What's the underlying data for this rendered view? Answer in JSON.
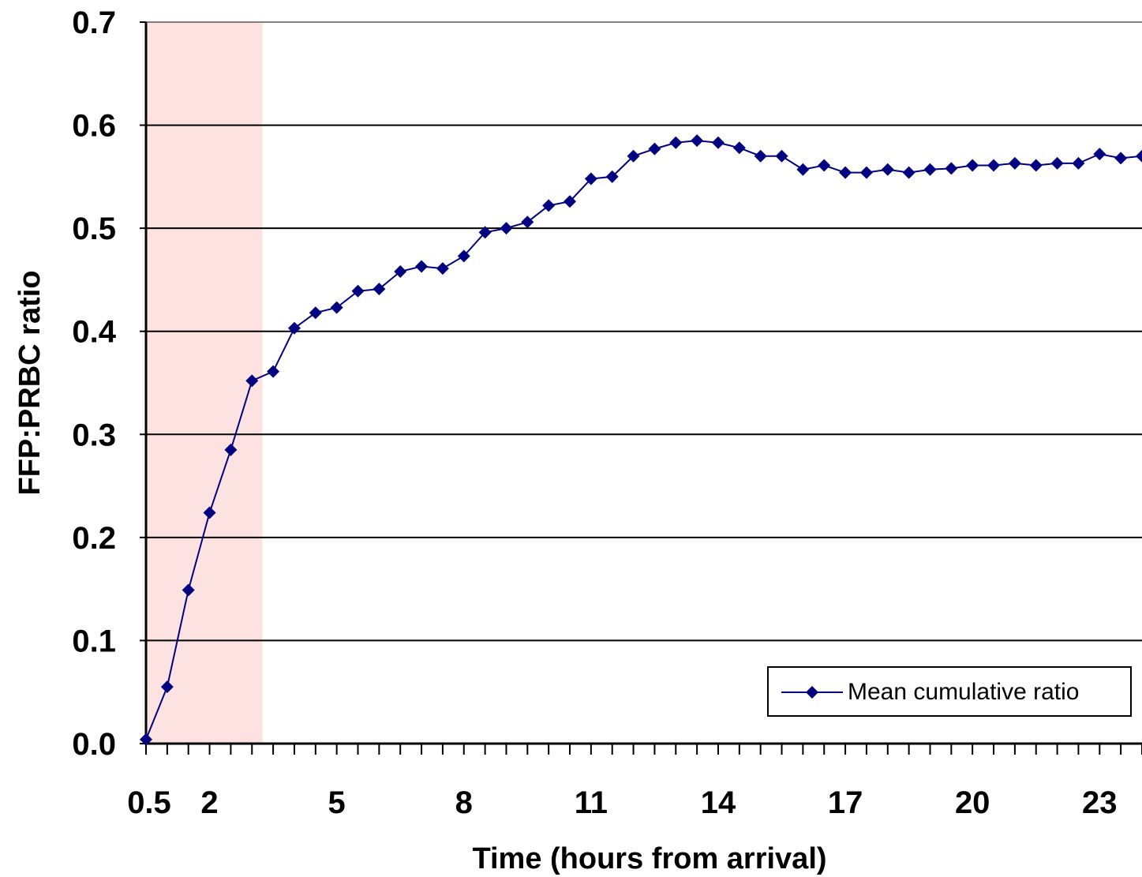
{
  "chart_data": {
    "type": "line",
    "xlabel": "Time (hours from arrival)",
    "ylabel": "FFP:PRBC ratio",
    "xlim": [
      0.5,
      24
    ],
    "ylim": [
      0,
      0.7
    ],
    "yticks": [
      "0.0",
      "0.1",
      "0.2",
      "0.3",
      "0.4",
      "0.5",
      "0.6",
      "0.7"
    ],
    "xticks": [
      "0.5",
      "2",
      "5",
      "8",
      "11",
      "14",
      "17",
      "20",
      "23"
    ],
    "grid": true,
    "legend": "bottom-right",
    "highlight_region": [
      0.5,
      3.25
    ],
    "colors": {
      "line": "#000080",
      "highlight": "#fde2e2"
    },
    "series": [
      {
        "name": "Mean cumulative ratio",
        "x": [
          0.5,
          1,
          1.5,
          2,
          2.5,
          3,
          3.5,
          4,
          4.5,
          5,
          5.5,
          6,
          6.5,
          7,
          7.5,
          8,
          8.5,
          9,
          9.5,
          10,
          10.5,
          11,
          11.5,
          12,
          12.5,
          13,
          13.5,
          14,
          14.5,
          15,
          15.5,
          16,
          16.5,
          17,
          17.5,
          18,
          18.5,
          19,
          19.5,
          20,
          20.5,
          21,
          21.5,
          22,
          22.5,
          23,
          23.5,
          24
        ],
        "values": [
          0.004,
          0.055,
          0.149,
          0.224,
          0.285,
          0.352,
          0.361,
          0.403,
          0.418,
          0.423,
          0.439,
          0.441,
          0.458,
          0.463,
          0.461,
          0.473,
          0.496,
          0.5,
          0.506,
          0.522,
          0.526,
          0.548,
          0.55,
          0.57,
          0.577,
          0.583,
          0.585,
          0.583,
          0.578,
          0.57,
          0.57,
          0.557,
          0.561,
          0.554,
          0.554,
          0.557,
          0.554,
          0.557,
          0.558,
          0.561,
          0.561,
          0.563,
          0.561,
          0.563,
          0.563,
          0.572,
          0.568,
          0.57
        ]
      }
    ]
  }
}
